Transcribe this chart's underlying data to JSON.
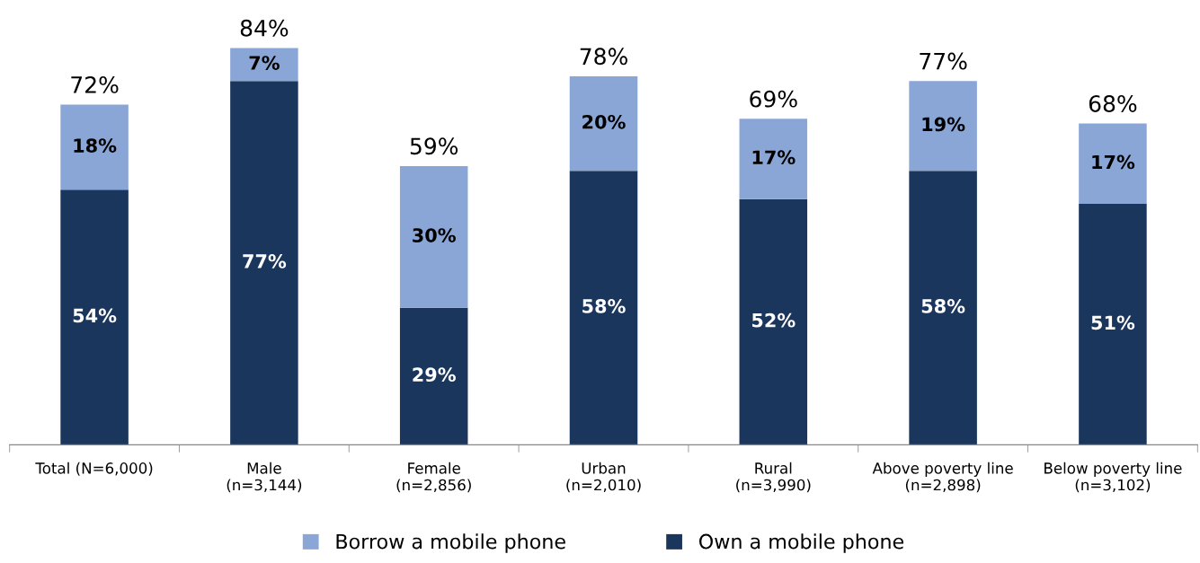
{
  "chart_data": {
    "type": "bar",
    "stacked": true,
    "categories": [
      "Total (N=6,000)",
      "Male\n(n=3,144)",
      "Female\n(n=2,856)",
      "Urban\n(n=2,010)",
      "Rural\n(n=3,990)",
      "Above poverty line\n(n=2,898)",
      "Below poverty line\n(n=3,102)"
    ],
    "series": [
      {
        "name": "Own a mobile phone",
        "color": "#1b365d",
        "values": [
          54,
          77,
          29,
          58,
          52,
          58,
          51
        ],
        "value_labels": [
          "54%",
          "77%",
          "29%",
          "58%",
          "52%",
          "58%",
          "51%"
        ]
      },
      {
        "name": "Borrow a mobile phone",
        "color": "#8aa6d6",
        "values": [
          18,
          7,
          30,
          20,
          17,
          19,
          17
        ],
        "value_labels": [
          "18%",
          "7%",
          "30%",
          "20%",
          "17%",
          "19%",
          "17%"
        ]
      }
    ],
    "totals": [
      "72%",
      "84%",
      "59%",
      "78%",
      "69%",
      "77%",
      "68%"
    ],
    "legend": "bottom"
  }
}
